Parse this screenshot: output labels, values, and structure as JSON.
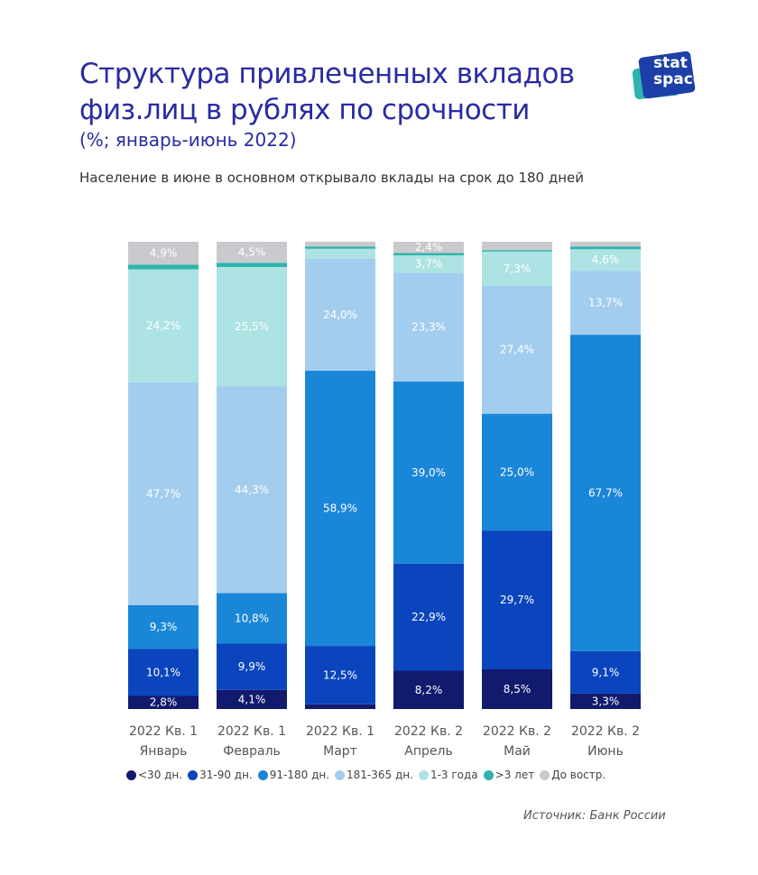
{
  "header": {
    "title_line1": "Структура привлеченных вкладов",
    "title_line2": "физ.лиц в рублях по срочности",
    "subtitle": "(%; январь-июнь 2022)",
    "description": "Население в июне в основном открывало вклады на срок до 180 дней"
  },
  "logo": {
    "line1": "stat",
    "line2": "space"
  },
  "source": "Источник: Банк России",
  "chart_data": {
    "type": "bar",
    "stacked": true,
    "title": "Структура привлеченных вкладов физ.лиц в рублях по срочности",
    "subtitle": "(%; январь-июнь 2022)",
    "categories": [
      [
        "2022 Кв. 1",
        "Январь"
      ],
      [
        "2022 Кв. 1",
        "Февраль"
      ],
      [
        "2022 Кв. 1",
        "Март"
      ],
      [
        "2022 Кв. 2",
        "Апрель"
      ],
      [
        "2022 Кв. 2",
        "Май"
      ],
      [
        "2022 Кв. 2",
        "Июнь"
      ]
    ],
    "ylim": [
      0,
      100
    ],
    "grid": false,
    "legend_position": "bottom",
    "series": [
      {
        "name": "<30 дн.",
        "color": "#121a6e",
        "values": [
          2.8,
          4.1,
          1.0,
          8.2,
          8.5,
          3.3
        ],
        "labels": [
          "2,8%",
          "4,1%",
          "",
          "8,2%",
          "8,5%",
          "3,3%"
        ]
      },
      {
        "name": "31-90 дн.",
        "color": "#0a45bd",
        "values": [
          10.1,
          9.9,
          12.5,
          22.9,
          29.7,
          9.1
        ],
        "labels": [
          "10,1%",
          "9,9%",
          "12,5%",
          "22,9%",
          "29,7%",
          "9,1%"
        ]
      },
      {
        "name": "91-180 дн.",
        "color": "#1a86d8",
        "values": [
          9.3,
          10.8,
          58.9,
          39.0,
          25.0,
          67.7
        ],
        "labels": [
          "9,3%",
          "10,8%",
          "58,9%",
          "39,0%",
          "25,0%",
          "67,7%"
        ]
      },
      {
        "name": "181-365 дн.",
        "color": "#a3cdee",
        "values": [
          47.7,
          44.3,
          24.0,
          23.3,
          27.4,
          13.7
        ],
        "labels": [
          "47,7%",
          "44,3%",
          "24,0%",
          "23,3%",
          "27,4%",
          "13,7%"
        ]
      },
      {
        "name": "1-3 года",
        "color": "#ade3e3",
        "values": [
          24.2,
          25.5,
          2.1,
          3.7,
          7.3,
          4.6
        ],
        "labels": [
          "24,2%",
          "25,5%",
          "",
          "3,7%",
          "7,3%",
          "4,6%"
        ]
      },
      {
        "name": ">3 лет",
        "color": "#2fb3ad",
        "values": [
          1.0,
          0.9,
          0.5,
          0.5,
          0.3,
          0.6
        ],
        "labels": [
          "",
          "",
          "",
          "",
          "",
          ""
        ]
      },
      {
        "name": "До востр.",
        "color": "#cacace",
        "values": [
          4.9,
          4.5,
          1.0,
          2.4,
          1.8,
          1.0
        ],
        "labels": [
          "4,9%",
          "4,5%",
          "",
          "2,4%",
          "",
          ""
        ]
      }
    ]
  }
}
